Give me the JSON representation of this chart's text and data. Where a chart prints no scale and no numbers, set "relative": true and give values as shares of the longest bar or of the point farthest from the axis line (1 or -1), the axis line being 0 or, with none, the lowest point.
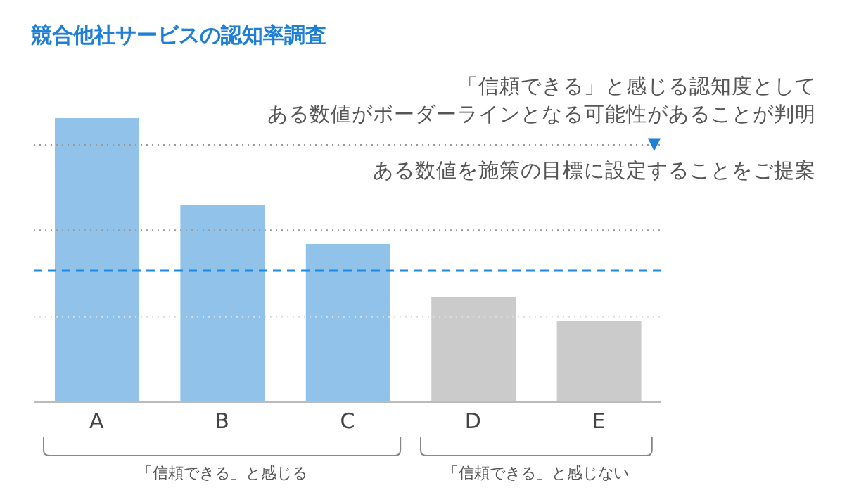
{
  "chart_data": {
    "type": "bar",
    "title": "競合他社サービスの認知率調査",
    "relative": true,
    "categories": [
      "A",
      "B",
      "C",
      "D",
      "E"
    ],
    "values": [
      1,
      0.695,
      0.557,
      0.369,
      0.286
    ],
    "colors": [
      "#90c2ea",
      "#90c2ea",
      "#90c2ea",
      "#cbcbcb",
      "#cbcbcb"
    ],
    "ref_lines": [
      {
        "axis": "y",
        "value": 0.906,
        "color": "#999999",
        "line_style": "dotted"
      },
      {
        "axis": "y",
        "value": 0.606,
        "color": "#999999",
        "line_style": "dotted"
      },
      {
        "axis": "y",
        "value": 0.3,
        "color": "#dddddd",
        "line_style": "dotted"
      },
      {
        "axis": "y",
        "value": 0.463,
        "color": "#1e88e5",
        "line_style": "dashed"
      }
    ],
    "annotations": [
      "「信頼できる」と感じる認知度として",
      "ある数値がボーダーラインとなる可能性があることが判明",
      "▼",
      "ある数値を施策の目標に設定することをご提案",
      "「信頼できる」と感じる",
      "「信頼できる」と感じない"
    ]
  }
}
